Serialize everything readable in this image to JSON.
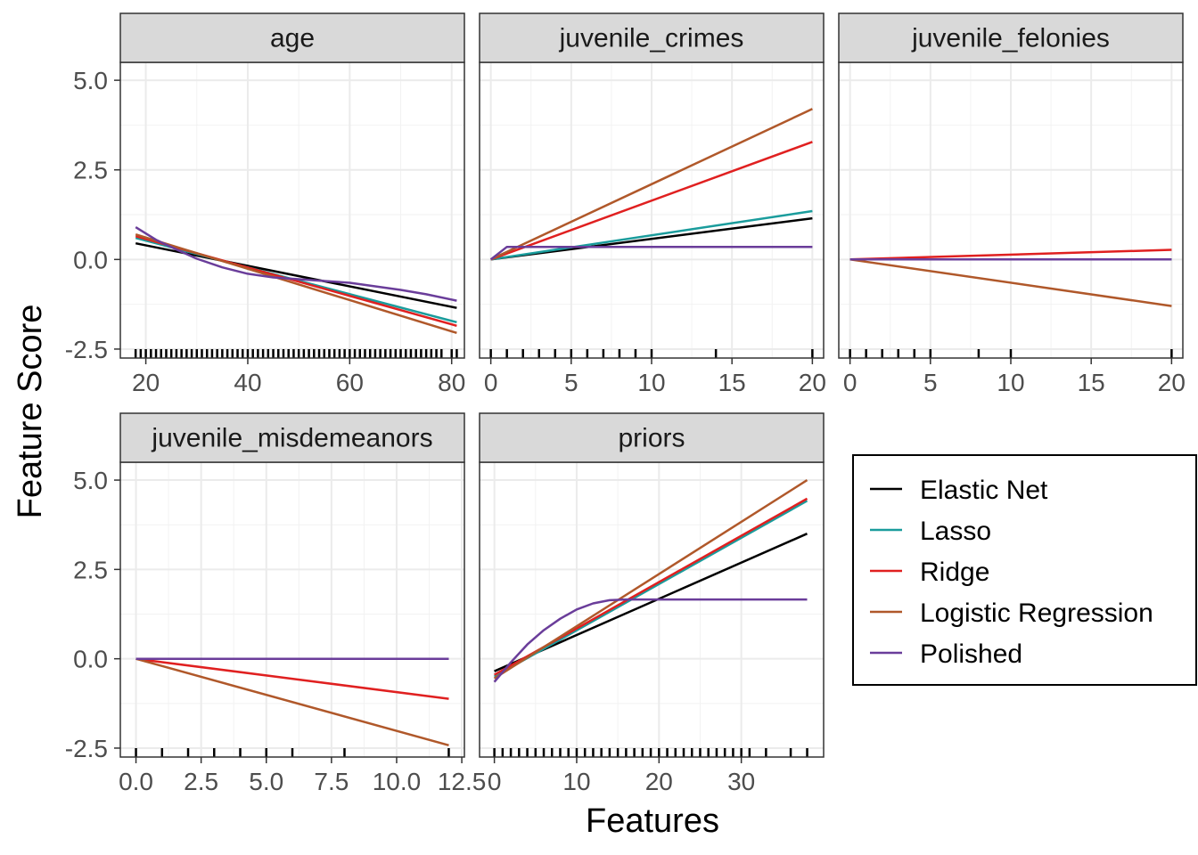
{
  "chart_data": {
    "type": "line",
    "xlabel": "Features",
    "ylabel": "Feature Score",
    "grid": true,
    "legend_position": "right",
    "legend": [
      {
        "name": "Elastic Net",
        "color": "#000000"
      },
      {
        "name": "Lasso",
        "color": "#1a9c9c"
      },
      {
        "name": "Ridge",
        "color": "#e02020"
      },
      {
        "name": "Logistic Regression",
        "color": "#b0582a"
      },
      {
        "name": "Polished",
        "color": "#6a3d9a"
      }
    ],
    "ylim": [
      -2.75,
      5.5
    ],
    "y_ticks": [
      -2.5,
      0.0,
      2.5,
      5.0
    ],
    "y_tick_labels": [
      "-2.5",
      "0.0",
      "2.5",
      "5.0"
    ],
    "panels": [
      {
        "id": "age",
        "title": "age",
        "xlim": [
          15,
          82.5
        ],
        "x_ticks": [
          20,
          40,
          60,
          80
        ],
        "x_tick_labels": [
          "20",
          "40",
          "60",
          "80"
        ],
        "rug": [
          18,
          19,
          20,
          21,
          22,
          23,
          24,
          25,
          26,
          27,
          28,
          29,
          30,
          31,
          32,
          33,
          34,
          35,
          36,
          37,
          38,
          39,
          40,
          41,
          42,
          43,
          44,
          45,
          46,
          47,
          48,
          49,
          50,
          51,
          52,
          53,
          54,
          55,
          56,
          57,
          58,
          59,
          60,
          61,
          62,
          63,
          64,
          65,
          66,
          67,
          68,
          69,
          70,
          71,
          72,
          73,
          74,
          75,
          76,
          77,
          78,
          80,
          81
        ],
        "series": [
          {
            "name": "Elastic Net",
            "x": [
              18,
              81
            ],
            "y": [
              0.45,
              -1.35
            ]
          },
          {
            "name": "Lasso",
            "x": [
              18,
              81
            ],
            "y": [
              0.6,
              -1.75
            ]
          },
          {
            "name": "Ridge",
            "x": [
              18,
              81
            ],
            "y": [
              0.65,
              -1.85
            ]
          },
          {
            "name": "Logistic Regression",
            "x": [
              18,
              81
            ],
            "y": [
              0.7,
              -2.05
            ]
          },
          {
            "name": "Polished",
            "x": [
              18,
              22,
              26,
              30,
              35,
              40,
              45,
              50,
              55,
              60,
              65,
              70,
              75,
              81
            ],
            "y": [
              0.9,
              0.55,
              0.28,
              0.02,
              -0.22,
              -0.4,
              -0.5,
              -0.55,
              -0.6,
              -0.65,
              -0.75,
              -0.85,
              -0.97,
              -1.15
            ]
          }
        ]
      },
      {
        "id": "juvenile_crimes",
        "title": "juvenile_crimes",
        "xlim": [
          -0.7,
          20.7
        ],
        "x_ticks": [
          0,
          5,
          10,
          15,
          20
        ],
        "x_tick_labels": [
          "0",
          "5",
          "10",
          "15",
          "20"
        ],
        "rug": [
          0,
          1,
          2,
          3,
          4,
          5,
          6,
          7,
          8,
          9,
          10,
          14,
          20
        ],
        "series": [
          {
            "name": "Elastic Net",
            "x": [
              0,
              20
            ],
            "y": [
              0.0,
              1.15
            ]
          },
          {
            "name": "Lasso",
            "x": [
              0,
              20
            ],
            "y": [
              0.0,
              1.35
            ]
          },
          {
            "name": "Ridge",
            "x": [
              0,
              20
            ],
            "y": [
              0.0,
              3.28
            ]
          },
          {
            "name": "Logistic Regression",
            "x": [
              0,
              20
            ],
            "y": [
              0.0,
              4.2
            ]
          },
          {
            "name": "Polished",
            "x": [
              0,
              1,
              20
            ],
            "y": [
              0.0,
              0.35,
              0.35
            ]
          }
        ]
      },
      {
        "id": "juvenile_felonies",
        "title": "juvenile_felonies",
        "xlim": [
          -0.7,
          20.7
        ],
        "x_ticks": [
          0,
          5,
          10,
          15,
          20
        ],
        "x_tick_labels": [
          "0",
          "5",
          "10",
          "15",
          "20"
        ],
        "rug": [
          0,
          1,
          2,
          3,
          4,
          5,
          8,
          10,
          20
        ],
        "series": [
          {
            "name": "Elastic Net",
            "x": [
              0,
              20
            ],
            "y": [
              0.0,
              0.0
            ]
          },
          {
            "name": "Lasso",
            "x": [
              0,
              20
            ],
            "y": [
              0.0,
              0.0
            ]
          },
          {
            "name": "Ridge",
            "x": [
              0,
              20
            ],
            "y": [
              0.0,
              0.27
            ]
          },
          {
            "name": "Logistic Regression",
            "x": [
              0,
              20
            ],
            "y": [
              0.0,
              -1.3
            ]
          },
          {
            "name": "Polished",
            "x": [
              0,
              20
            ],
            "y": [
              0.0,
              0.0
            ]
          }
        ]
      },
      {
        "id": "juvenile_misdemeanors",
        "title": "juvenile_misdemeanors",
        "xlim": [
          -0.6,
          12.6
        ],
        "x_ticks": [
          0,
          2.5,
          5,
          7.5,
          10,
          12.5
        ],
        "x_tick_labels": [
          "0.0",
          "2.5",
          "5.0",
          "7.5",
          "10.0",
          "12.5"
        ],
        "rug": [
          0,
          1,
          2,
          3,
          4,
          5,
          6,
          8,
          12
        ],
        "series": [
          {
            "name": "Elastic Net",
            "x": [
              0,
              12
            ],
            "y": [
              0.0,
              0.0
            ]
          },
          {
            "name": "Lasso",
            "x": [
              0,
              12
            ],
            "y": [
              0.0,
              0.0
            ]
          },
          {
            "name": "Ridge",
            "x": [
              0,
              12
            ],
            "y": [
              0.0,
              -1.12
            ]
          },
          {
            "name": "Logistic Regression",
            "x": [
              0,
              12
            ],
            "y": [
              0.0,
              -2.42
            ]
          },
          {
            "name": "Polished",
            "x": [
              0,
              12
            ],
            "y": [
              0.0,
              0.0
            ]
          }
        ]
      },
      {
        "id": "priors",
        "title": "priors",
        "xlim": [
          -1.8,
          40
        ],
        "x_ticks": [
          0,
          10,
          20,
          30
        ],
        "x_tick_labels": [
          "0",
          "10",
          "20",
          "30"
        ],
        "rug": [
          0,
          1,
          2,
          3,
          4,
          5,
          6,
          7,
          8,
          9,
          10,
          11,
          12,
          13,
          14,
          15,
          16,
          17,
          18,
          19,
          20,
          21,
          22,
          23,
          24,
          25,
          26,
          27,
          28,
          29,
          30,
          31,
          33,
          36,
          38
        ],
        "series": [
          {
            "name": "Elastic Net",
            "x": [
              0,
              38
            ],
            "y": [
              -0.35,
              3.5
            ]
          },
          {
            "name": "Lasso",
            "x": [
              0,
              38
            ],
            "y": [
              -0.5,
              4.42
            ]
          },
          {
            "name": "Ridge",
            "x": [
              0,
              38
            ],
            "y": [
              -0.45,
              4.48
            ]
          },
          {
            "name": "Logistic Regression",
            "x": [
              0,
              38
            ],
            "y": [
              -0.55,
              5.0
            ]
          },
          {
            "name": "Polished",
            "x": [
              0,
              2,
              4,
              6,
              8,
              10,
              12,
              14,
              16,
              38
            ],
            "y": [
              -0.65,
              -0.1,
              0.4,
              0.8,
              1.12,
              1.38,
              1.55,
              1.64,
              1.66,
              1.66
            ]
          }
        ]
      }
    ]
  }
}
